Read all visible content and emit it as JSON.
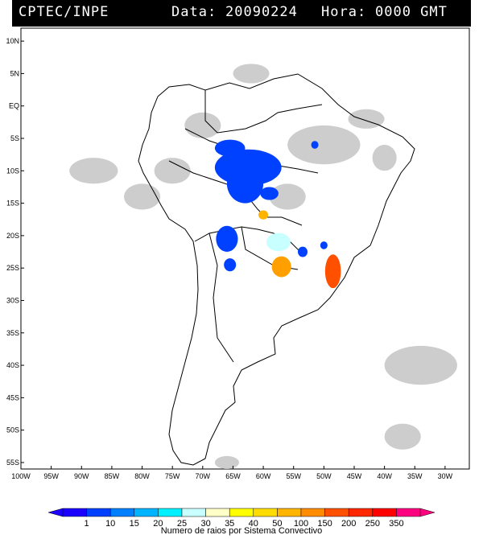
{
  "header": {
    "left": "CPTEC/INPE",
    "data_label": "Data:",
    "date": "20090224",
    "hora_label": "Hora:",
    "time": "0000 GMT"
  },
  "lat_labels": [
    "10N",
    "5N",
    "EQ",
    "5S",
    "10S",
    "15S",
    "20S",
    "25S",
    "30S",
    "35S",
    "40S",
    "45S",
    "50S",
    "55S"
  ],
  "lon_labels": [
    "100W",
    "95W",
    "90W",
    "85W",
    "80W",
    "75W",
    "70W",
    "65W",
    "60W",
    "55W",
    "50W",
    "45W",
    "40W",
    "35W",
    "30W"
  ],
  "colorbar": {
    "title": "Numero de raios por Sistema Convectivo",
    "labels": [
      "1",
      "10",
      "15",
      "20",
      "25",
      "30",
      "35",
      "40",
      "50",
      "100",
      "150",
      "200",
      "250",
      "350"
    ],
    "colors": [
      "#1b00ff",
      "#0040ff",
      "#0080ff",
      "#00b4ff",
      "#00f0ff",
      "#c8ffff",
      "#ffffc8",
      "#ffff00",
      "#ffdc00",
      "#ffb400",
      "#ff8c00",
      "#ff5000",
      "#ff2800",
      "#ff0000",
      "#ff0080"
    ]
  },
  "cells": [
    {
      "lon": -62.5,
      "lat": -9.5,
      "rx": 5.5,
      "ry": 2.8,
      "color": "#0040ff"
    },
    {
      "lon": -63.0,
      "lat": -12.0,
      "rx": 3.0,
      "ry": 3.0,
      "color": "#0040ff"
    },
    {
      "lon": -65.5,
      "lat": -6.5,
      "rx": 2.5,
      "ry": 1.3,
      "color": "#0040ff"
    },
    {
      "lon": -59.0,
      "lat": -13.5,
      "rx": 1.5,
      "ry": 1.0,
      "color": "#0040ff"
    },
    {
      "lon": -66.0,
      "lat": -20.5,
      "rx": 1.8,
      "ry": 2.0,
      "color": "#0040ff"
    },
    {
      "lon": -65.5,
      "lat": -24.5,
      "rx": 1.0,
      "ry": 1.0,
      "color": "#0040ff"
    },
    {
      "lon": -57.5,
      "lat": -21.0,
      "rx": 2.0,
      "ry": 1.4,
      "color": "#c8ffff"
    },
    {
      "lon": -57.0,
      "lat": -24.8,
      "rx": 1.6,
      "ry": 1.6,
      "color": "#ffa000"
    },
    {
      "lon": -60.0,
      "lat": -16.8,
      "rx": 0.8,
      "ry": 0.7,
      "color": "#ffb400"
    },
    {
      "lon": -48.5,
      "lat": -25.5,
      "rx": 1.3,
      "ry": 2.6,
      "color": "#ff5000"
    },
    {
      "lon": -53.5,
      "lat": -22.5,
      "rx": 0.8,
      "ry": 0.8,
      "color": "#0040ff"
    },
    {
      "lon": -50.0,
      "lat": -21.5,
      "rx": 0.6,
      "ry": 0.6,
      "color": "#0040ff"
    },
    {
      "lon": -51.5,
      "lat": -6.0,
      "rx": 0.6,
      "ry": 0.6,
      "color": "#0040ff"
    }
  ],
  "clouds": [
    {
      "lon": -50,
      "lat": -6,
      "rx": 6,
      "ry": 3
    },
    {
      "lon": -43,
      "lat": -2,
      "rx": 3,
      "ry": 1.5
    },
    {
      "lon": -62,
      "lat": 5,
      "rx": 3,
      "ry": 1.5
    },
    {
      "lon": -70,
      "lat": -3,
      "rx": 3,
      "ry": 2
    },
    {
      "lon": -75,
      "lat": -10,
      "rx": 3,
      "ry": 2
    },
    {
      "lon": -56,
      "lat": -14,
      "rx": 3,
      "ry": 2
    },
    {
      "lon": -40,
      "lat": -8,
      "rx": 2,
      "ry": 2
    },
    {
      "lon": -88,
      "lat": -10,
      "rx": 4,
      "ry": 2
    },
    {
      "lon": -80,
      "lat": -14,
      "rx": 3,
      "ry": 2
    },
    {
      "lon": -34,
      "lat": -40,
      "rx": 6,
      "ry": 3
    },
    {
      "lon": -37,
      "lat": -51,
      "rx": 3,
      "ry": 2
    },
    {
      "lon": -66,
      "lat": -55,
      "rx": 2,
      "ry": 1
    }
  ]
}
